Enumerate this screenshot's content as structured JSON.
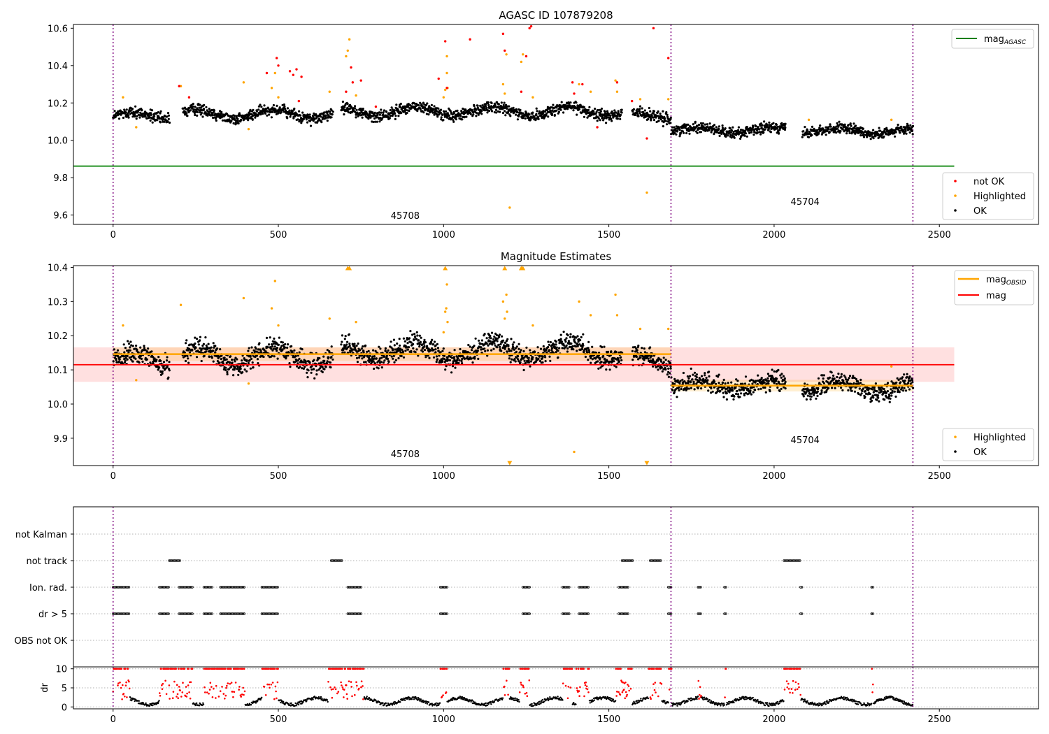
{
  "chart_data": [
    {
      "type": "scatter",
      "title": "AGASC ID 107879208",
      "xlabel": "",
      "ylabel": "",
      "xlim": [
        -120,
        2800
      ],
      "ylim": [
        9.55,
        10.62
      ],
      "xticks": [
        0,
        500,
        1000,
        1500,
        2000,
        2500
      ],
      "yticks": [
        9.6,
        9.8,
        10.0,
        10.2,
        10.4,
        10.6
      ],
      "ytick_labels": [
        "9.6",
        "9.8",
        "10.0",
        "10.2",
        "10.4",
        "10.6"
      ],
      "obs_boundaries": [
        0,
        1688,
        2420
      ],
      "obs_labels": [
        {
          "x": 840,
          "y": 9.58,
          "text": "45708"
        },
        {
          "x": 2050,
          "y": 9.655,
          "text": "45704"
        }
      ],
      "mag_agasc": {
        "name": "mag_AGASC",
        "value": 9.862,
        "x": [
          -120,
          2545
        ],
        "color": "#008000"
      },
      "series_ok": {
        "name": "OK",
        "color": "#000000",
        "segments": [
          {
            "x0": 0,
            "x1": 170,
            "center": 10.13,
            "spread": 0.05,
            "wave": 0.02
          },
          {
            "x0": 210,
            "x1": 665,
            "center": 10.14,
            "spread": 0.05,
            "wave": 0.025
          },
          {
            "x0": 690,
            "x1": 1540,
            "center": 10.155,
            "spread": 0.05,
            "wave": 0.025
          },
          {
            "x0": 1570,
            "x1": 1688,
            "center": 10.13,
            "spread": 0.05,
            "wave": 0.02
          },
          {
            "x0": 1688,
            "x1": 2035,
            "center": 10.055,
            "spread": 0.045,
            "wave": 0.015
          },
          {
            "x0": 2085,
            "x1": 2420,
            "center": 10.05,
            "spread": 0.045,
            "wave": 0.015
          }
        ]
      },
      "series_highlighted": {
        "name": "Highlighted",
        "color": "#ffa500",
        "points": [
          [
            30,
            10.23
          ],
          [
            70,
            10.07
          ],
          [
            205,
            10.29
          ],
          [
            395,
            10.31
          ],
          [
            410,
            10.06
          ],
          [
            480,
            10.28
          ],
          [
            490,
            10.36
          ],
          [
            500,
            10.23
          ],
          [
            655,
            10.26
          ],
          [
            705,
            10.45
          ],
          [
            710,
            10.48
          ],
          [
            715,
            10.54
          ],
          [
            735,
            10.24
          ],
          [
            1000,
            10.23
          ],
          [
            1005,
            10.27
          ],
          [
            1010,
            10.45
          ],
          [
            1010,
            10.36
          ],
          [
            1012,
            10.28
          ],
          [
            1180,
            10.3
          ],
          [
            1185,
            10.25
          ],
          [
            1190,
            10.46
          ],
          [
            1200,
            9.64
          ],
          [
            1235,
            10.42
          ],
          [
            1240,
            10.46
          ],
          [
            1270,
            10.23
          ],
          [
            1410,
            10.3
          ],
          [
            1445,
            10.26
          ],
          [
            1520,
            10.32
          ],
          [
            1525,
            10.26
          ],
          [
            1595,
            10.22
          ],
          [
            1615,
            9.72
          ],
          [
            1680,
            10.22
          ],
          [
            2105,
            10.11
          ],
          [
            2355,
            10.11
          ]
        ]
      },
      "series_not_ok": {
        "name": "not OK",
        "color": "#ff0000",
        "points": [
          [
            200,
            10.29
          ],
          [
            230,
            10.23
          ],
          [
            465,
            10.36
          ],
          [
            495,
            10.44
          ],
          [
            500,
            10.4
          ],
          [
            535,
            10.37
          ],
          [
            545,
            10.35
          ],
          [
            555,
            10.38
          ],
          [
            562,
            10.21
          ],
          [
            570,
            10.34
          ],
          [
            705,
            10.26
          ],
          [
            720,
            10.39
          ],
          [
            725,
            10.31
          ],
          [
            750,
            10.32
          ],
          [
            795,
            10.18
          ],
          [
            985,
            10.33
          ],
          [
            1005,
            10.53
          ],
          [
            1010,
            10.28
          ],
          [
            1080,
            10.54
          ],
          [
            1180,
            10.57
          ],
          [
            1185,
            10.48
          ],
          [
            1235,
            10.26
          ],
          [
            1250,
            10.45
          ],
          [
            1260,
            10.6
          ],
          [
            1265,
            10.61
          ],
          [
            1390,
            10.31
          ],
          [
            1395,
            10.25
          ],
          [
            1420,
            10.3
          ],
          [
            1465,
            10.07
          ],
          [
            1525,
            10.31
          ],
          [
            1570,
            10.21
          ],
          [
            1615,
            10.01
          ],
          [
            1635,
            10.6
          ],
          [
            1680,
            10.44
          ]
        ]
      },
      "legends": [
        {
          "position": "upper-right",
          "entries": [
            {
              "label": "mag",
              "subscript": "AGASC",
              "color": "#008000",
              "kind": "line"
            }
          ]
        },
        {
          "position": "lower-right",
          "entries": [
            {
              "label": "not OK",
              "color": "#ff0000",
              "kind": "dot"
            },
            {
              "label": "Highlighted",
              "color": "#ffa500",
              "kind": "dot"
            },
            {
              "label": "OK",
              "color": "#000000",
              "kind": "dot"
            }
          ]
        }
      ]
    },
    {
      "type": "scatter",
      "title": "Magnitude Estimates",
      "xlabel": "",
      "ylabel": "",
      "xlim": [
        -120,
        2800
      ],
      "ylim": [
        9.82,
        10.405
      ],
      "xticks": [
        0,
        500,
        1000,
        1500,
        2000,
        2500
      ],
      "yticks": [
        9.9,
        10.0,
        10.1,
        10.2,
        10.3,
        10.4
      ],
      "ytick_labels": [
        "9.9",
        "10.0",
        "10.1",
        "10.2",
        "10.3",
        "10.4"
      ],
      "obs_boundaries": [
        0,
        1688,
        2420
      ],
      "obs_labels": [
        {
          "x": 840,
          "y": 9.845,
          "text": "45708"
        },
        {
          "x": 2050,
          "y": 9.885,
          "text": "45704"
        }
      ],
      "mag": {
        "name": "mag",
        "value": 10.115,
        "band": [
          10.065,
          10.166
        ],
        "x": [
          -120,
          2545
        ],
        "color": "#ff0000"
      },
      "mag_obsid": [
        {
          "name": "mag_OBSID",
          "x": [
            0,
            1688
          ],
          "value": 10.146,
          "band": [
            10.126,
            10.166
          ],
          "color": "#ffa500"
        },
        {
          "name": "mag_OBSID",
          "x": [
            1688,
            2420
          ],
          "value": 10.054,
          "band": [
            10.037,
            10.071
          ],
          "color": "#ffa500"
        }
      ],
      "series_ok": {
        "name": "OK",
        "color": "#000000",
        "segments": [
          {
            "x0": 0,
            "x1": 170,
            "center": 10.13,
            "spread": 0.05,
            "wave": 0.02
          },
          {
            "x0": 210,
            "x1": 665,
            "center": 10.14,
            "spread": 0.05,
            "wave": 0.025
          },
          {
            "x0": 690,
            "x1": 1540,
            "center": 10.155,
            "spread": 0.05,
            "wave": 0.025
          },
          {
            "x0": 1570,
            "x1": 1688,
            "center": 10.13,
            "spread": 0.05,
            "wave": 0.02
          },
          {
            "x0": 1688,
            "x1": 2035,
            "center": 10.055,
            "spread": 0.045,
            "wave": 0.015
          },
          {
            "x0": 2085,
            "x1": 2420,
            "center": 10.05,
            "spread": 0.045,
            "wave": 0.015
          }
        ]
      },
      "series_highlighted": {
        "name": "Highlighted",
        "color": "#ffa500",
        "points": [
          [
            30,
            10.23
          ],
          [
            70,
            10.07
          ],
          [
            205,
            10.29
          ],
          [
            395,
            10.31
          ],
          [
            410,
            10.06
          ],
          [
            480,
            10.28
          ],
          [
            490,
            10.36
          ],
          [
            500,
            10.23
          ],
          [
            655,
            10.25
          ],
          [
            735,
            10.24
          ],
          [
            1000,
            10.21
          ],
          [
            1005,
            10.27
          ],
          [
            1008,
            10.28
          ],
          [
            1010,
            10.35
          ],
          [
            1012,
            10.24
          ],
          [
            1180,
            10.3
          ],
          [
            1185,
            10.25
          ],
          [
            1190,
            10.32
          ],
          [
            1192,
            10.27
          ],
          [
            1270,
            10.23
          ],
          [
            1395,
            9.86
          ],
          [
            1410,
            10.3
          ],
          [
            1445,
            10.26
          ],
          [
            1520,
            10.32
          ],
          [
            1525,
            10.26
          ],
          [
            1595,
            10.22
          ],
          [
            1680,
            10.22
          ],
          [
            2355,
            10.11
          ]
        ]
      },
      "off_scale_markers": [
        {
          "x": 710,
          "y": 10.4,
          "dir": "up"
        },
        {
          "x": 715,
          "y": 10.4,
          "dir": "up"
        },
        {
          "x": 1005,
          "y": 10.4,
          "dir": "up"
        },
        {
          "x": 1185,
          "y": 10.4,
          "dir": "up"
        },
        {
          "x": 1235,
          "y": 10.4,
          "dir": "up"
        },
        {
          "x": 1240,
          "y": 10.4,
          "dir": "up"
        },
        {
          "x": 1200,
          "y": 9.825,
          "dir": "down"
        },
        {
          "x": 1615,
          "y": 9.825,
          "dir": "down"
        }
      ],
      "legends": [
        {
          "position": "upper-right",
          "entries": [
            {
              "label": "mag",
              "subscript": "OBSID",
              "color": "#ffa500",
              "kind": "line"
            },
            {
              "label": "mag",
              "color": "#ff0000",
              "kind": "line"
            }
          ]
        },
        {
          "position": "lower-right",
          "entries": [
            {
              "label": "Highlighted",
              "color": "#ffa500",
              "kind": "dot"
            },
            {
              "label": "OK",
              "color": "#000000",
              "kind": "dot"
            }
          ]
        }
      ]
    },
    {
      "type": "scatter",
      "title": "",
      "xlim": [
        -120,
        2800
      ],
      "categories": [
        "not Kalman",
        "not track",
        "Ion. rad.",
        "dr > 5",
        "OBS not OK"
      ],
      "flag_ranges": {
        "not Kalman": [],
        "not track": [
          [
            170,
            205
          ],
          [
            660,
            695
          ],
          [
            1540,
            1575
          ],
          [
            1625,
            1660
          ],
          [
            2030,
            2080
          ]
        ],
        "Ion. rad.": [
          [
            0,
            50
          ],
          [
            140,
            170
          ],
          [
            200,
            240
          ],
          [
            275,
            300
          ],
          [
            325,
            400
          ],
          [
            450,
            500
          ],
          [
            710,
            750
          ],
          [
            990,
            1010
          ],
          [
            1240,
            1260
          ],
          [
            1360,
            1380
          ],
          [
            1410,
            1440
          ],
          [
            1530,
            1560
          ],
          [
            1680,
            1690
          ],
          [
            1770,
            1780
          ],
          [
            1850,
            1855
          ],
          [
            2080,
            2085
          ],
          [
            2295,
            2300
          ]
        ],
        "dr > 5": [
          [
            0,
            50
          ],
          [
            140,
            170
          ],
          [
            200,
            240
          ],
          [
            275,
            300
          ],
          [
            325,
            400
          ],
          [
            450,
            500
          ],
          [
            710,
            750
          ],
          [
            990,
            1010
          ],
          [
            1240,
            1260
          ],
          [
            1360,
            1380
          ],
          [
            1410,
            1440
          ],
          [
            1530,
            1560
          ],
          [
            1680,
            1690
          ],
          [
            1770,
            1780
          ],
          [
            1850,
            1855
          ],
          [
            2080,
            2085
          ],
          [
            2295,
            2300
          ]
        ],
        "OBS not OK": []
      },
      "obs_boundaries": [
        0,
        1688,
        2420
      ],
      "dr": {
        "ylabel": "dr",
        "ylim": [
          -0.5,
          10.5
        ],
        "yticks": [
          0,
          5,
          10
        ],
        "ytick_labels": [
          "0",
          "5",
          "10"
        ],
        "clip": 10,
        "ok_color": "#000000",
        "bad_color": "#ff0000",
        "high_ranges": [
          [
            0,
            50
          ],
          [
            140,
            240
          ],
          [
            275,
            400
          ],
          [
            450,
            500
          ],
          [
            650,
            760
          ],
          [
            990,
            1010
          ],
          [
            1180,
            1200
          ],
          [
            1230,
            1260
          ],
          [
            1360,
            1390
          ],
          [
            1400,
            1440
          ],
          [
            1520,
            1570
          ],
          [
            1620,
            1660
          ],
          [
            1680,
            1690
          ],
          [
            1770,
            1780
          ],
          [
            1850,
            1855
          ],
          [
            2030,
            2080
          ],
          [
            2295,
            2300
          ]
        ]
      }
    }
  ]
}
